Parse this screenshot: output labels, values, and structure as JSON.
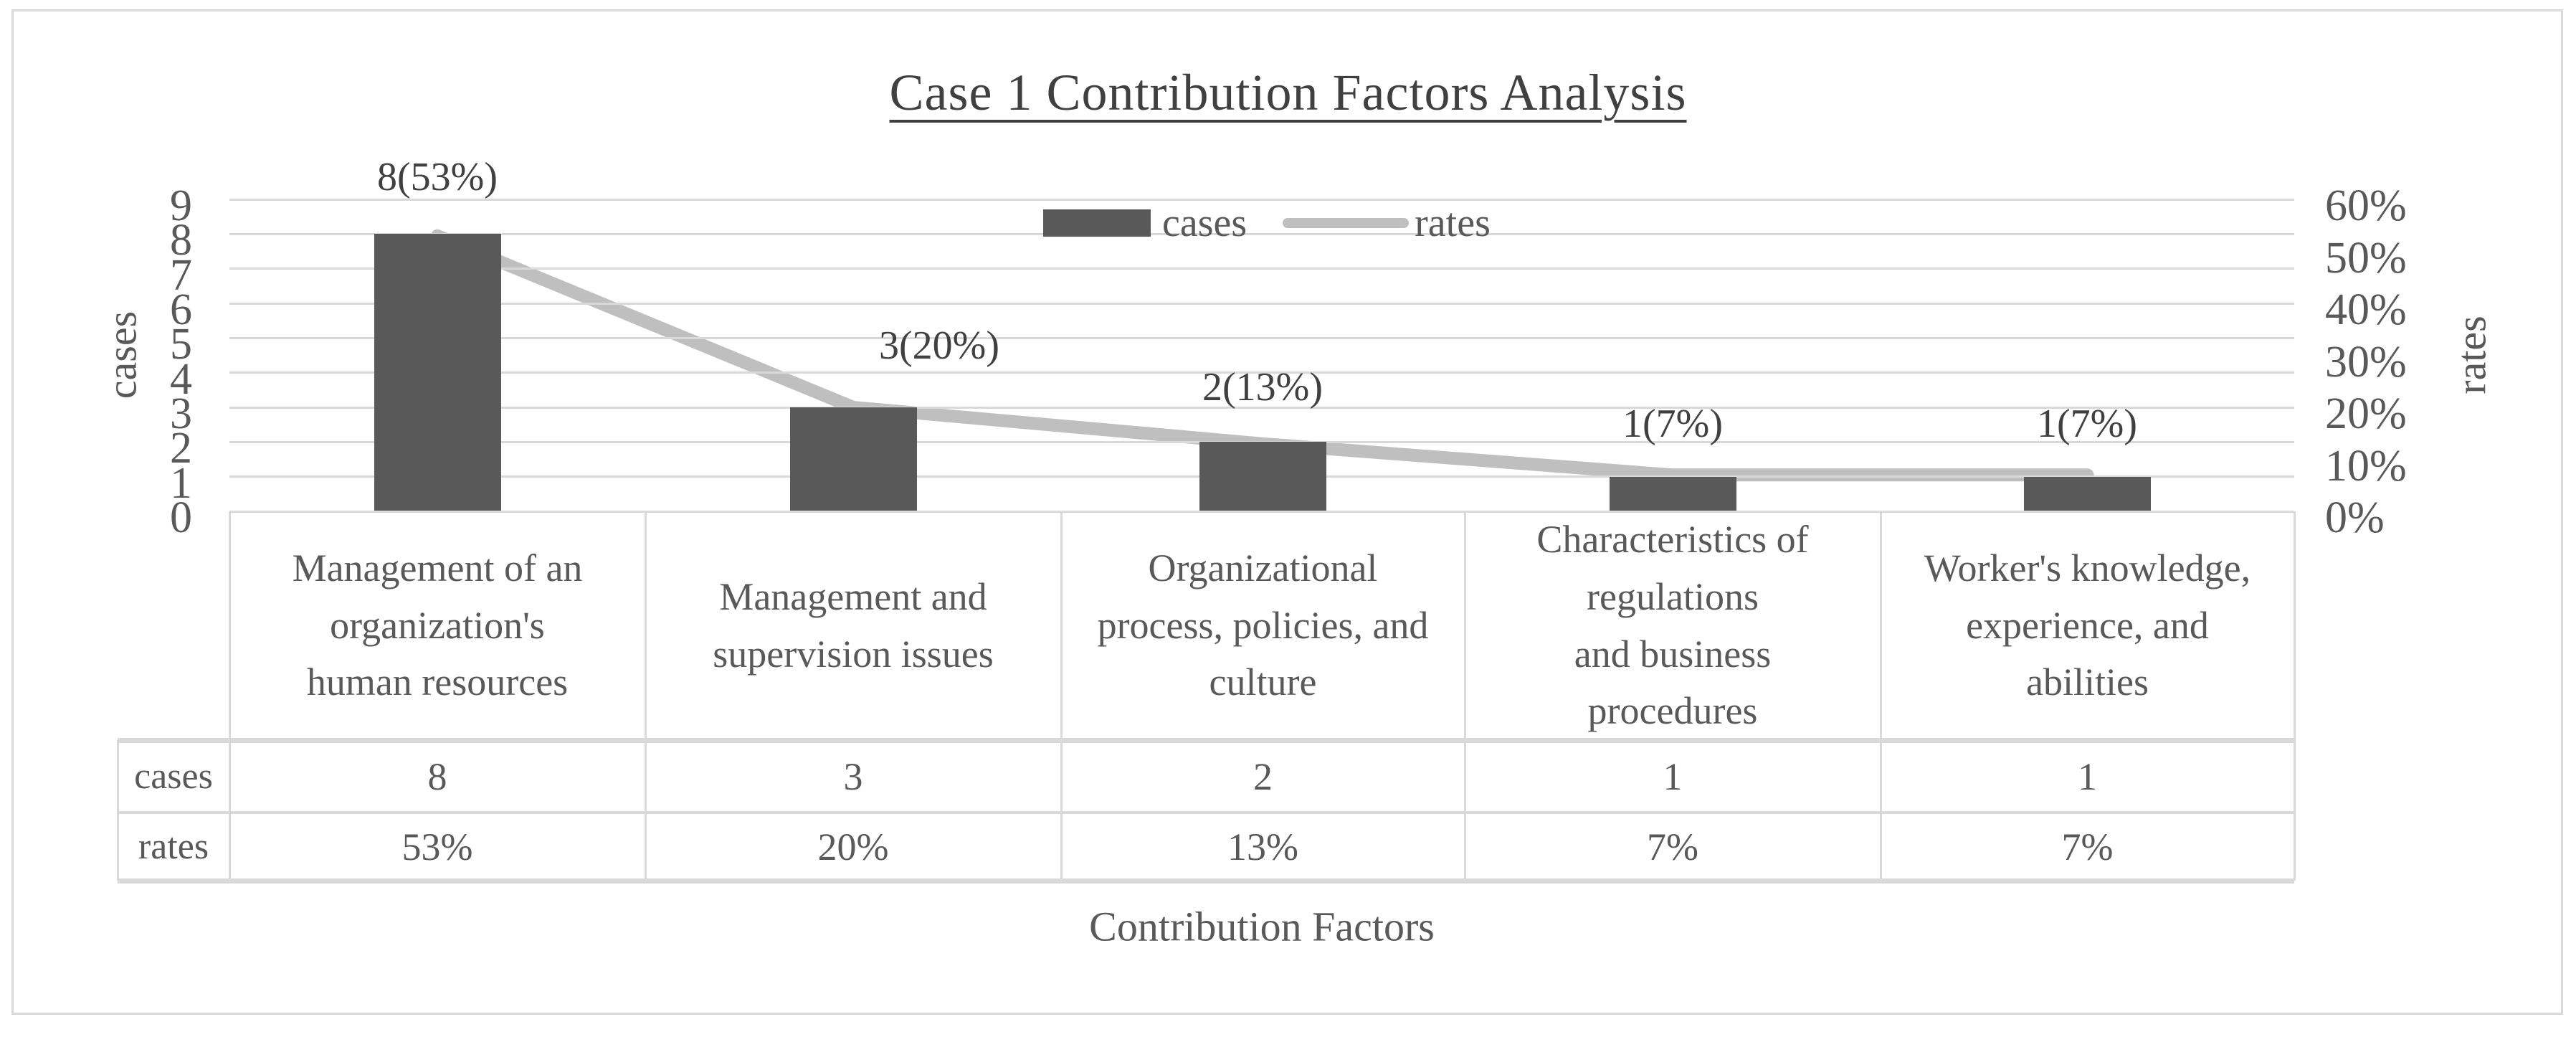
{
  "title": "Case 1 Contribution Factors Analysis",
  "legend": {
    "cases_label": "cases",
    "rates_label": "rates"
  },
  "left_axis": {
    "title": "cases",
    "ticks": [
      "9",
      "8",
      "7",
      "6",
      "5",
      "4",
      "3",
      "2",
      "1",
      "0"
    ]
  },
  "right_axis": {
    "title": "rates",
    "ticks": [
      "60%",
      "50%",
      "40%",
      "30%",
      "20%",
      "10%",
      "0%"
    ]
  },
  "x_axis_title": "Contribution Factors",
  "colors": {
    "bar": "#595959",
    "line": "#bfbfbf",
    "grid": "#d9d9d9",
    "frame": "#d9d9d9",
    "title_text": "#404040",
    "body_text": "#595959"
  },
  "chart_data": {
    "type": "bar+line combo (pareto)",
    "title": "Case 1 Contribution Factors Analysis",
    "categories": [
      "Management of an organization's human resources",
      "Management and supervision issues",
      "Organizational process, policies, and culture",
      "Characteristics of regulations and business procedures",
      "Worker's knowledge, experience, and abilities"
    ],
    "series": [
      {
        "name": "cases",
        "type": "bar",
        "axis": "left",
        "values": [
          8,
          3,
          2,
          1,
          1
        ]
      },
      {
        "name": "rates",
        "type": "line",
        "axis": "right",
        "values_pct": [
          53,
          20,
          13,
          7,
          7
        ]
      }
    ],
    "data_labels": [
      "8(53%)",
      "3(20%)",
      "2(13%)",
      "1(7%)",
      "1(7%)"
    ],
    "xlabel": "Contribution Factors",
    "left_ylabel": "cases",
    "right_ylabel": "rates",
    "left_ylim": [
      0,
      9
    ],
    "right_ylim_pct": [
      0,
      60
    ],
    "grid": true,
    "legend_position": "top-center-inside"
  },
  "table": {
    "row_headers": [
      "cases",
      "rates"
    ],
    "categories": [
      "Management of an\norganization's\nhuman resources",
      "Management and\nsupervision issues",
      "Organizational\nprocess, policies, and\nculture",
      "Characteristics of\nregulations\nand business\nprocedures",
      "Worker's knowledge,\nexperience, and\nabilities"
    ],
    "cases_values": [
      "8",
      "3",
      "2",
      "1",
      "1"
    ],
    "rates_values": [
      "53%",
      "20%",
      "13%",
      "7%",
      "7%"
    ]
  }
}
